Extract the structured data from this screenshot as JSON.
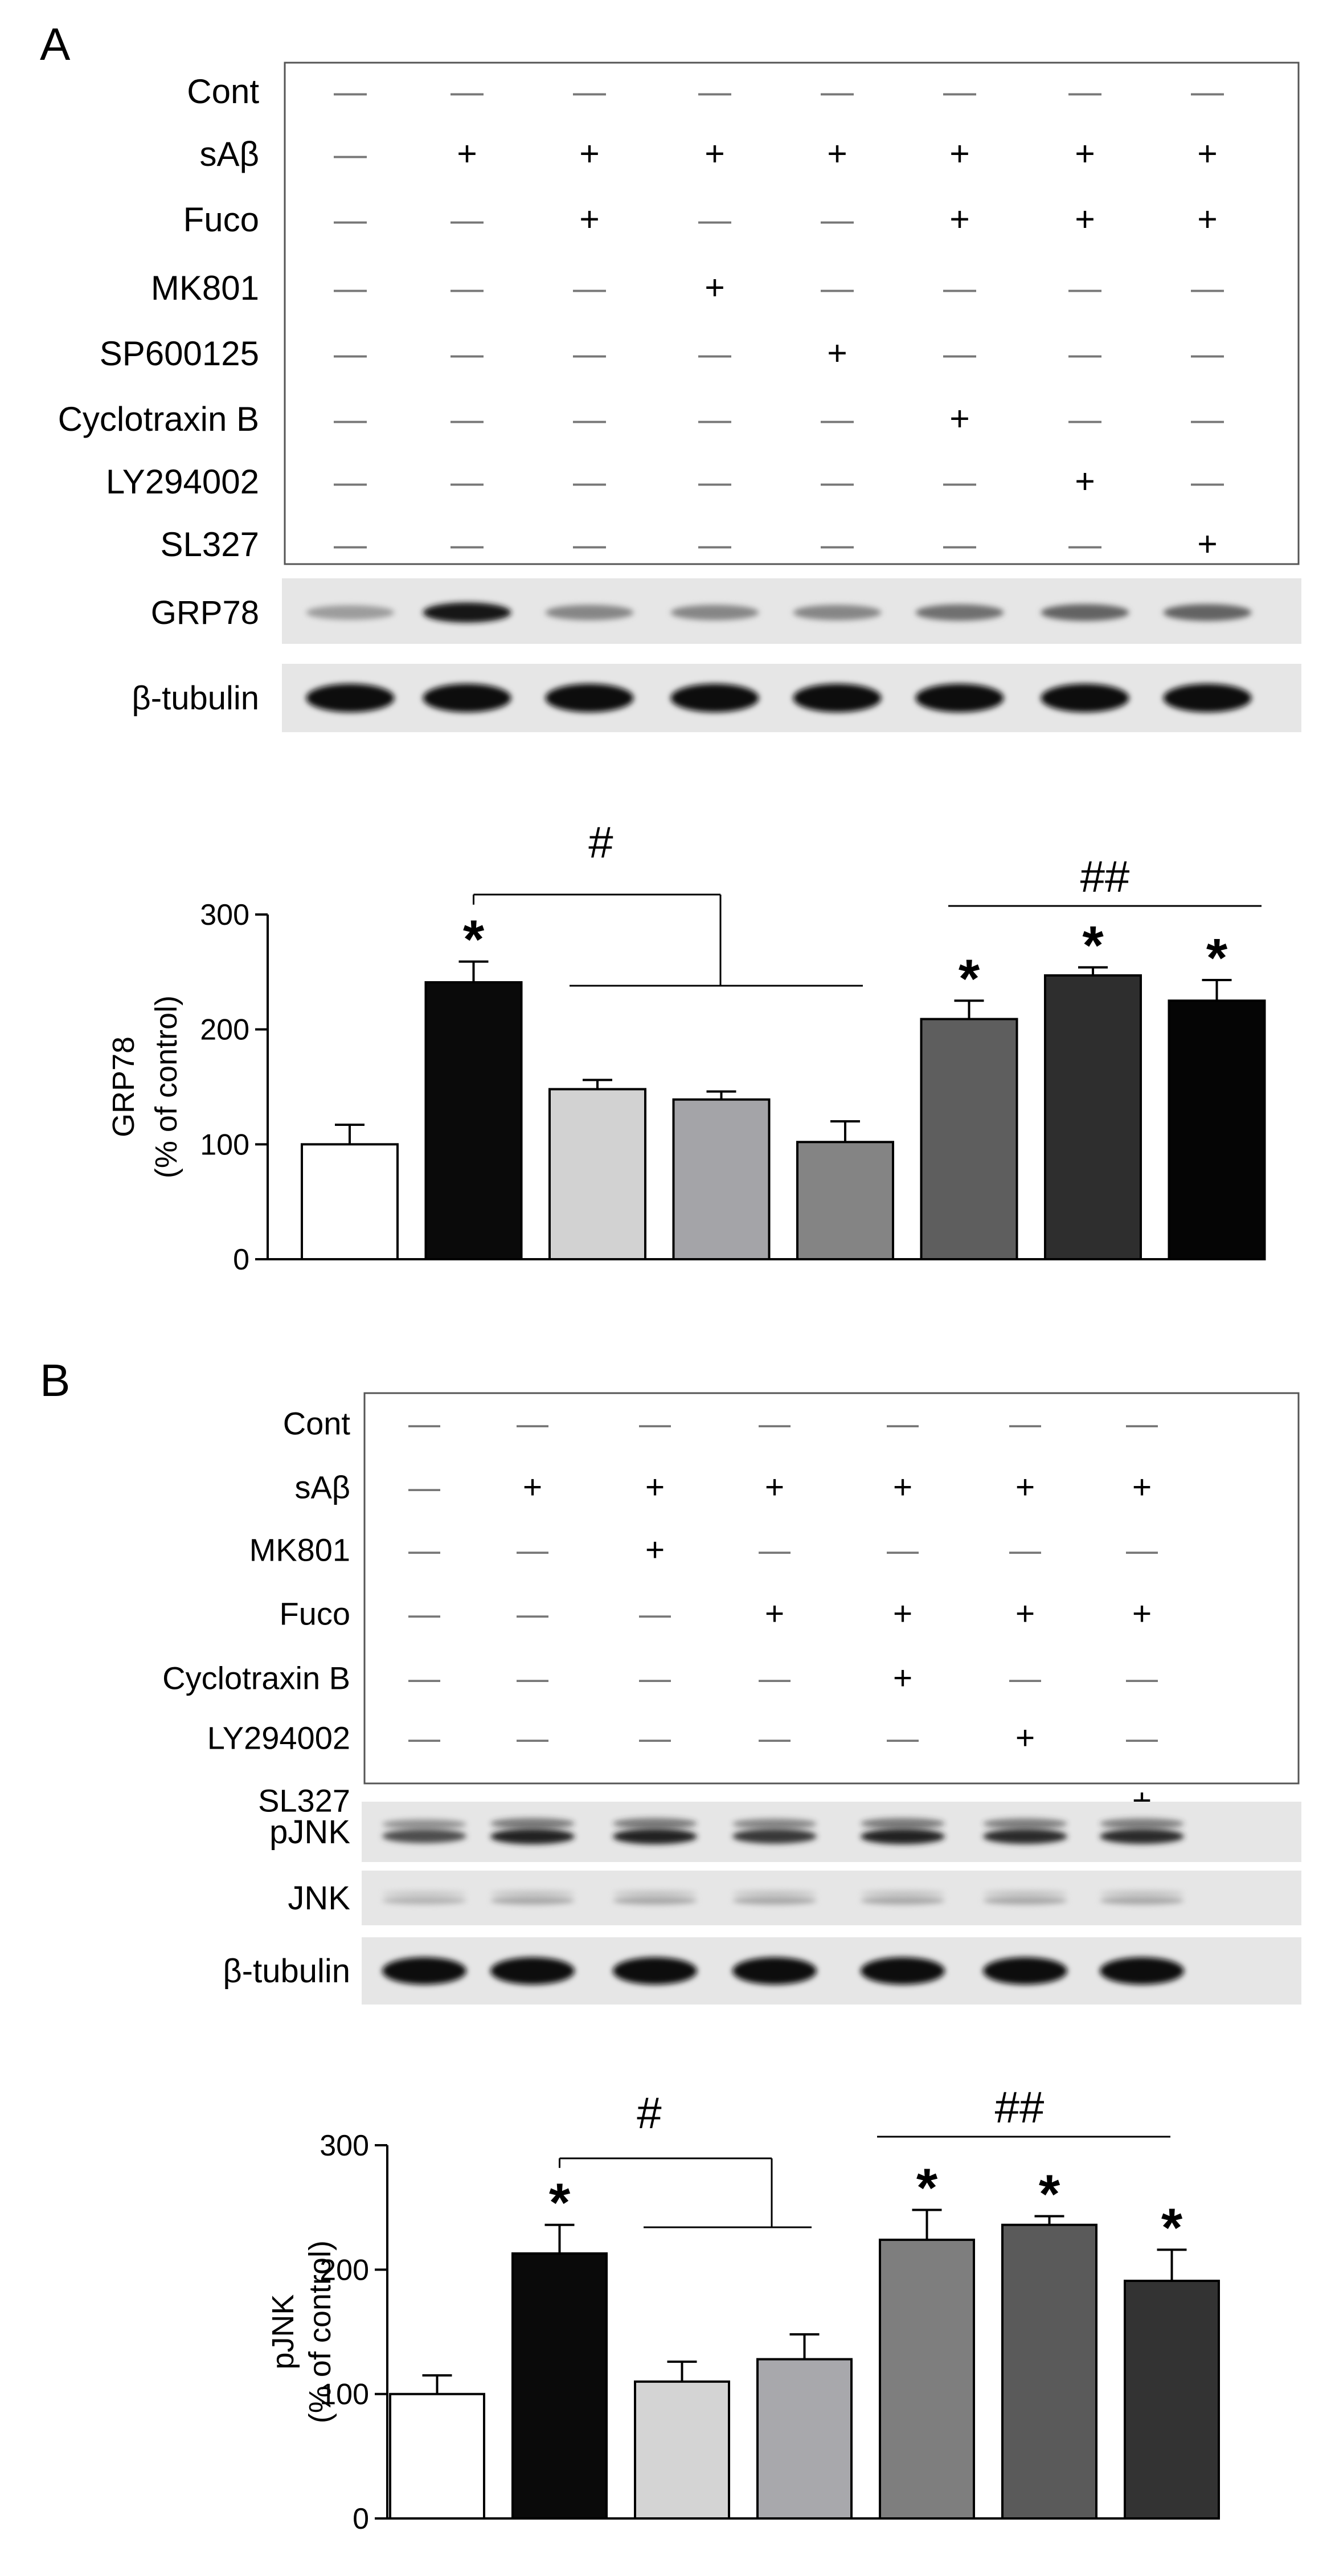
{
  "panels": [
    {
      "panel_label": "A",
      "treatment_rows": [
        {
          "label": "Cont",
          "signs": [
            "—",
            "—",
            "—",
            "—",
            "—",
            "—",
            "—",
            "—"
          ]
        },
        {
          "label": "sAβ",
          "signs": [
            "—",
            "+",
            "+",
            "+",
            "+",
            "+",
            "+",
            "+"
          ]
        },
        {
          "label": "Fuco",
          "signs": [
            "—",
            "—",
            "+",
            "—",
            "—",
            "+",
            "+",
            "+"
          ]
        },
        {
          "label": "MK801",
          "signs": [
            "—",
            "—",
            "—",
            "+",
            "—",
            "—",
            "—",
            "—"
          ]
        },
        {
          "label": "SP600125",
          "signs": [
            "—",
            "—",
            "—",
            "—",
            "+",
            "—",
            "—",
            "—"
          ]
        },
        {
          "label": "Cyclotraxin B",
          "signs": [
            "—",
            "—",
            "—",
            "—",
            "—",
            "+",
            "—",
            "—"
          ]
        },
        {
          "label": "LY294002",
          "signs": [
            "—",
            "—",
            "—",
            "—",
            "—",
            "—",
            "+",
            "—"
          ]
        },
        {
          "label": "SL327",
          "signs": [
            "—",
            "—",
            "—",
            "—",
            "—",
            "—",
            "—",
            "+"
          ]
        }
      ],
      "blots": [
        {
          "label": "GRP78",
          "band_intensity": [
            0.35,
            0.95,
            0.45,
            0.45,
            0.45,
            0.55,
            0.6,
            0.6
          ],
          "double": false
        },
        {
          "label": "β-tubulin",
          "band_intensity": [
            1,
            1,
            1,
            1,
            1,
            1,
            1,
            1
          ],
          "double": false
        }
      ],
      "significance": {
        "single": "#",
        "double": "##",
        "star": "*"
      },
      "chart_data": {
        "type": "bar",
        "ylabel": "GRP78",
        "ylabel_sub": "(% of control)",
        "ylim": [
          0,
          300
        ],
        "yticks": [
          "0",
          "100",
          "200",
          "300"
        ],
        "values": [
          100,
          241,
          148,
          139,
          102,
          209,
          247,
          225
        ],
        "errors": [
          17,
          18,
          8,
          7,
          18,
          16,
          7,
          18
        ],
        "colors": [
          "#ffffff",
          "#0a0a0a",
          "#d2d2d2",
          "#a4a4a8",
          "#848484",
          "#5e5e5e",
          "#2e2e2e",
          "#050505"
        ],
        "star_bars": [
          1,
          5,
          6,
          7
        ]
      }
    },
    {
      "panel_label": "B",
      "treatment_rows": [
        {
          "label": "Cont",
          "signs": [
            "—",
            "—",
            "—",
            "—",
            "—",
            "—",
            "—"
          ]
        },
        {
          "label": "sAβ",
          "signs": [
            "—",
            "+",
            "+",
            "+",
            "+",
            "+",
            "+"
          ]
        },
        {
          "label": "MK801",
          "signs": [
            "—",
            "—",
            "+",
            "—",
            "—",
            "—",
            "—"
          ]
        },
        {
          "label": "Fuco",
          "signs": [
            "—",
            "—",
            "—",
            "+",
            "+",
            "+",
            "+"
          ]
        },
        {
          "label": "Cyclotraxin B",
          "signs": [
            "—",
            "—",
            "—",
            "—",
            "+",
            "—",
            "—"
          ]
        },
        {
          "label": "LY294002",
          "signs": [
            "—",
            "—",
            "—",
            "—",
            "—",
            "+",
            "—"
          ]
        },
        {
          "label": "SL327",
          "signs": [
            "—",
            "—",
            "—",
            "—",
            "—",
            "—",
            "+"
          ]
        }
      ],
      "blots": [
        {
          "label": "pJNK",
          "band_intensity": [
            0.7,
            0.9,
            0.9,
            0.8,
            0.9,
            0.85,
            0.85
          ],
          "double": true
        },
        {
          "label": "JNK",
          "band_intensity": [
            0.25,
            0.3,
            0.3,
            0.3,
            0.3,
            0.3,
            0.3
          ],
          "double": true
        },
        {
          "label": "β-tubulin",
          "band_intensity": [
            1,
            1,
            1,
            1,
            1,
            1,
            1
          ],
          "double": false
        }
      ],
      "significance": {
        "single": "#",
        "double": "##",
        "star": "*"
      },
      "chart_data": {
        "type": "bar",
        "ylabel": "pJNK",
        "ylabel_sub": "(% of control)",
        "ylim": [
          0,
          300
        ],
        "yticks": [
          "0",
          "100",
          "200",
          "300"
        ],
        "values": [
          100,
          213,
          110,
          128,
          224,
          236,
          191
        ],
        "errors": [
          15,
          23,
          16,
          20,
          24,
          7,
          25
        ],
        "colors": [
          "#ffffff",
          "#0a0a0a",
          "#d4d4d4",
          "#a8a8ac",
          "#7e7e7e",
          "#5a5a5a",
          "#333333"
        ],
        "star_bars": [
          1,
          4,
          5,
          6
        ]
      }
    }
  ]
}
